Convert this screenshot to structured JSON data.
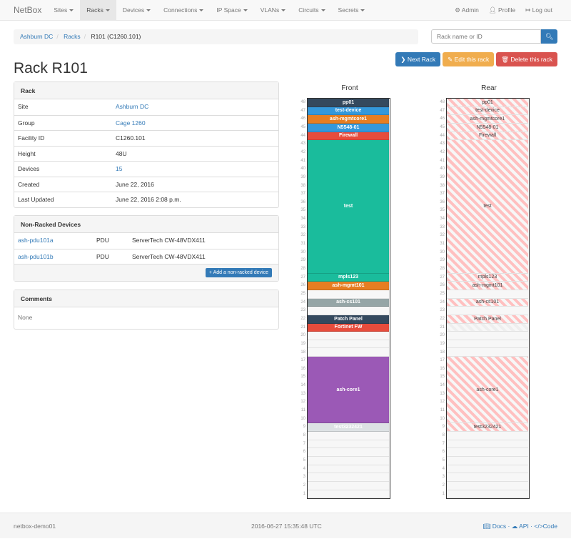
{
  "nav": {
    "brand": "NetBox",
    "items": [
      "Sites",
      "Racks",
      "Devices",
      "Connections",
      "IP Space",
      "VLANs",
      "Circuits",
      "Secrets"
    ],
    "active": "Racks",
    "right": [
      {
        "icon": "gear-icon",
        "label": "Admin"
      },
      {
        "icon": "user-icon",
        "label": "Profile"
      },
      {
        "icon": "logout-icon",
        "label": "Log out"
      }
    ]
  },
  "breadcrumb": [
    "Ashburn DC",
    "Racks",
    "R101 (C1260.101)"
  ],
  "search": {
    "placeholder": "Rack name or ID"
  },
  "buttons": {
    "next": "Next Rack",
    "edit": "Edit this rack",
    "delete": "Delete this rack"
  },
  "title": "Rack R101",
  "rack_panel": {
    "heading": "Rack",
    "rows": [
      {
        "k": "Site",
        "v": "Ashburn DC",
        "link": true
      },
      {
        "k": "Group",
        "v": "Cage 1260",
        "link": true
      },
      {
        "k": "Facility ID",
        "v": "C1260.101"
      },
      {
        "k": "Height",
        "v": "48U"
      },
      {
        "k": "Devices",
        "v": "15",
        "link": true
      },
      {
        "k": "Created",
        "v": "June 22, 2016"
      },
      {
        "k": "Last Updated",
        "v": "June 22, 2016 2:08 p.m."
      }
    ]
  },
  "nonracked": {
    "heading": "Non-Racked Devices",
    "rows": [
      [
        "ash-pdu101a",
        "PDU",
        "ServerTech CW-48VDX411"
      ],
      [
        "ash-pdu101b",
        "PDU",
        "ServerTech CW-48VDX411"
      ]
    ],
    "add": "Add a non-racked device"
  },
  "comments": {
    "heading": "Comments",
    "body": "None"
  },
  "elevation": {
    "front_label": "Front",
    "rear_label": "Rear",
    "units": 48,
    "devices": [
      {
        "name": "pp01",
        "u": 48,
        "h": 1,
        "color": "#34495e",
        "rear": "full"
      },
      {
        "name": "test-device",
        "u": 47,
        "h": 1,
        "color": "#3498db",
        "rear": "full"
      },
      {
        "name": "ash-mgmtcore1",
        "u": 46,
        "h": 1,
        "color": "#e67e22",
        "rear": "full"
      },
      {
        "name": "N5548-01",
        "u": 45,
        "h": 1,
        "color": "#3498db",
        "rear": "full"
      },
      {
        "name": "Firewall",
        "u": 44,
        "h": 1,
        "color": "#e74c3c",
        "rear": "full"
      },
      {
        "name": "test",
        "u": 28,
        "h": 16,
        "color": "#1abc9c",
        "rear": "full"
      },
      {
        "name": "mpls123",
        "u": 27,
        "h": 1,
        "color": "#1abc9c",
        "rear": "full"
      },
      {
        "name": "ash-mgmt101",
        "u": 26,
        "h": 1,
        "color": "#e67e22",
        "rear": "full"
      },
      {
        "name": "ash-cs101",
        "u": 24,
        "h": 1,
        "color": "#95a5a6",
        "rear": "full"
      },
      {
        "name": "Patch Panel",
        "u": 22,
        "h": 1,
        "color": "#34495e",
        "rear": "full"
      },
      {
        "name": "Fortinet FW",
        "u": 21,
        "h": 1,
        "color": "#e74c3c",
        "rear": "occupied"
      },
      {
        "name": "ash-core1",
        "u": 10,
        "h": 8,
        "color": "#9b59b6",
        "rear": "full"
      },
      {
        "name": "test3232421",
        "u": 9,
        "h": 1,
        "color": "#dde2e4",
        "rear": "full"
      }
    ]
  },
  "footer": {
    "host": "netbox-demo01",
    "time": "2016-06-27 15:35:48 UTC",
    "links": [
      "Docs",
      "API",
      "Code"
    ]
  }
}
